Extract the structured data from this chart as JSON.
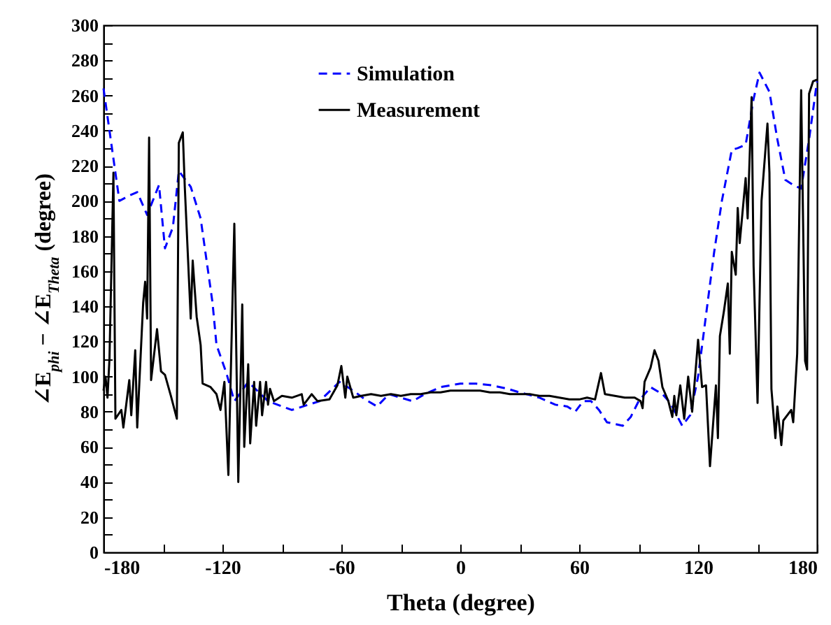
{
  "chart_data": {
    "type": "line",
    "xlabel": "Theta (degree)",
    "ylabel": "∠E$_{phi}$ − ∠E$_{Theta}$ (degree)",
    "xlim": [
      -180,
      180
    ],
    "ylim": [
      0,
      300
    ],
    "xticks": [
      -180,
      {
        "value": -150,
        "label": null
      },
      -120,
      {
        "value": -90,
        "label": null
      },
      -60,
      {
        "value": -30,
        "label": null
      },
      0,
      {
        "value": 30,
        "label": null
      },
      60,
      {
        "value": 90,
        "label": null
      },
      120,
      {
        "value": 150,
        "label": null
      },
      180
    ],
    "yticks": [
      0,
      {
        "value": 10,
        "label": null
      },
      20,
      {
        "value": 30,
        "label": null
      },
      40,
      {
        "value": 50,
        "label": null
      },
      60,
      {
        "value": 70,
        "label": null
      },
      80,
      {
        "value": 90,
        "label": null
      },
      100,
      {
        "value": 110,
        "label": null
      },
      120,
      {
        "value": 130,
        "label": null
      },
      140,
      {
        "value": 150,
        "label": null
      },
      160,
      {
        "value": 170,
        "label": null
      },
      180,
      {
        "value": 190,
        "label": null
      },
      200,
      {
        "value": 210,
        "label": null
      },
      220,
      {
        "value": 230,
        "label": null
      },
      240,
      {
        "value": 250,
        "label": null
      },
      260,
      {
        "value": 270,
        "label": null
      },
      280,
      {
        "value": 290,
        "label": null
      },
      300
    ],
    "grid": false,
    "legend": "top left",
    "marker": "none",
    "series": [
      {
        "name": "Simulation",
        "color": "#0000ff",
        "line_style": "dashed",
        "x": [
          -180,
          -177,
          -172,
          -167,
          -163,
          -158,
          -152,
          -149,
          -145,
          -142,
          -136,
          -131,
          -125,
          -123,
          -118,
          -114,
          -107,
          -97,
          -85,
          -71,
          -61,
          -54,
          -48,
          -42,
          -36,
          -30,
          -24,
          -18,
          -10,
          0,
          8,
          16,
          24,
          30,
          40,
          48,
          54,
          58,
          62,
          66,
          70,
          74,
          78,
          82,
          86,
          90,
          96,
          102,
          106,
          112,
          116,
          120,
          124,
          128,
          132,
          137,
          140,
          144,
          148,
          151,
          156,
          160,
          164,
          168,
          172,
          176,
          180
        ],
        "values": [
          264,
          240,
          200,
          203,
          205,
          192,
          209,
          173,
          185,
          217,
          208,
          190,
          142,
          118,
          102,
          86,
          97,
          86,
          81,
          86,
          97,
          92,
          87,
          83,
          90,
          88,
          86,
          90,
          94,
          96,
          96,
          95,
          93,
          91,
          88,
          84,
          83,
          80,
          86,
          86,
          81,
          74,
          73,
          72,
          77,
          86,
          94,
          90,
          85,
          72,
          78,
          100,
          135,
          170,
          200,
          229,
          230,
          232,
          258,
          273,
          262,
          235,
          212,
          209,
          207,
          235,
          268
        ]
      },
      {
        "name": "Measurement",
        "color": "#000000",
        "line_style": "solid",
        "x": [
          -180,
          -179,
          -178,
          -177,
          -175,
          -174,
          -171,
          -170,
          -167,
          -166,
          -164,
          -163,
          -160,
          -159,
          -158,
          -157,
          -156,
          -153,
          -151,
          -149,
          -146,
          -143,
          -142,
          -140,
          -139,
          -136,
          -135,
          -133,
          -131,
          -130,
          -126,
          -123,
          -121,
          -119,
          -117,
          -114,
          -112,
          -110,
          -109,
          -107,
          -106,
          -104,
          -103,
          -101,
          -100,
          -98,
          -97,
          -96,
          -94,
          -90,
          -85,
          -80,
          -79,
          -75,
          -72,
          -66,
          -62,
          -60,
          -58,
          -57,
          -54,
          -50,
          -45,
          -40,
          -35,
          -30,
          -25,
          -20,
          -15,
          -10,
          -5,
          0,
          5,
          10,
          15,
          20,
          25,
          30,
          35,
          40,
          45,
          50,
          55,
          60,
          64,
          68,
          71,
          73,
          78,
          83,
          88,
          91,
          92,
          93,
          96,
          98,
          100,
          102,
          105,
          107,
          108,
          109,
          111,
          113,
          115,
          117,
          119,
          120,
          122,
          124,
          126,
          129,
          130,
          131,
          133,
          135,
          136,
          137,
          139,
          140,
          141,
          144,
          145,
          147,
          148,
          150,
          152,
          155,
          156,
          157,
          159,
          160,
          162,
          163,
          167,
          168,
          170,
          172,
          174,
          175,
          176,
          178,
          180
        ],
        "values": [
          92,
          100,
          88,
          110,
          216,
          76,
          81,
          71,
          98,
          78,
          115,
          71,
          142,
          154,
          133,
          236,
          98,
          127,
          103,
          101,
          89,
          76,
          233,
          239,
          208,
          133,
          166,
          134,
          118,
          96,
          94,
          90,
          81,
          97,
          44,
          187,
          40,
          141,
          60,
          107,
          62,
          97,
          72,
          97,
          78,
          97,
          84,
          93,
          86,
          89,
          88,
          90,
          84,
          90,
          86,
          87,
          95,
          106,
          88,
          100,
          88,
          89,
          90,
          89,
          90,
          89,
          90,
          90,
          91,
          91,
          92,
          92,
          92,
          92,
          91,
          91,
          90,
          90,
          90,
          89,
          89,
          88,
          87,
          87,
          88,
          87,
          102,
          90,
          89,
          88,
          88,
          86,
          82,
          97,
          105,
          115,
          109,
          94,
          86,
          77,
          89,
          78,
          95,
          76,
          100,
          80,
          107,
          121,
          94,
          95,
          49,
          95,
          65,
          123,
          137,
          153,
          113,
          171,
          158,
          196,
          176,
          213,
          190,
          259,
          163,
          85,
          200,
          244,
          216,
          93,
          65,
          83,
          61,
          75,
          81,
          74,
          113,
          263,
          109,
          104,
          261,
          268,
          269
        ]
      }
    ]
  }
}
